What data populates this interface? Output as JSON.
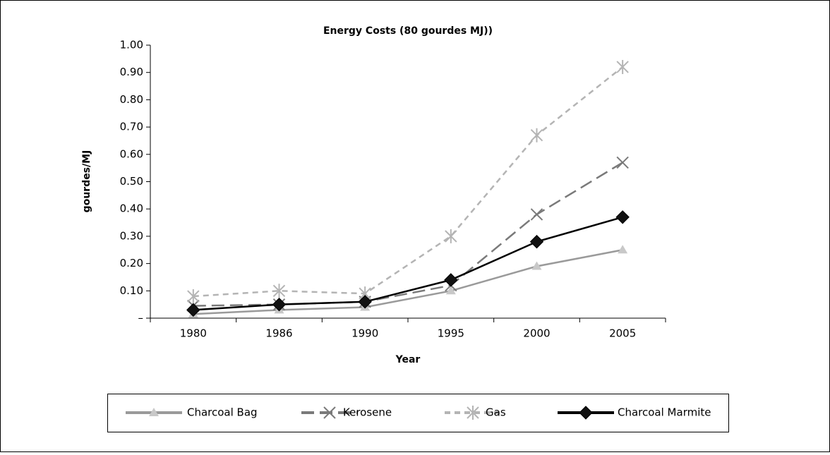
{
  "chart_data": {
    "type": "line",
    "title": "Energy Costs (80 gourdes MJ))",
    "x_label": "Year",
    "y_label": "gourdes/MJ",
    "categories": [
      "1980",
      "1986",
      "1990",
      "1995",
      "2000",
      "2005"
    ],
    "ylim": [
      0,
      1
    ],
    "yticks": [
      {
        "value": 0,
        "label": "–"
      },
      {
        "value": 0.1,
        "label": "0.10"
      },
      {
        "value": 0.2,
        "label": "0.20"
      },
      {
        "value": 0.3,
        "label": "0.30"
      },
      {
        "value": 0.4,
        "label": "0.40"
      },
      {
        "value": 0.5,
        "label": "0.50"
      },
      {
        "value": 0.6,
        "label": "0.60"
      },
      {
        "value": 0.7,
        "label": "0.70"
      },
      {
        "value": 0.8,
        "label": "0.80"
      },
      {
        "value": 0.9,
        "label": "0.90"
      },
      {
        "value": 1,
        "label": "1.00"
      }
    ],
    "legend": "bottom",
    "series": [
      {
        "name": "Charcoal Bag",
        "color": "#9a9a9a",
        "dash": "solid",
        "marker": "triangle",
        "values": [
          0.015,
          0.03,
          0.04,
          0.1,
          0.19,
          0.25
        ]
      },
      {
        "name": "Kerosene",
        "color": "#7a7a7a",
        "dash": "long",
        "marker": "x",
        "values": [
          0.045,
          0.05,
          0.06,
          0.12,
          0.38,
          0.57
        ]
      },
      {
        "name": "Gas",
        "color": "#b4b4b4",
        "dash": "short",
        "marker": "asterisk",
        "values": [
          0.08,
          0.1,
          0.09,
          0.3,
          0.67,
          0.92
        ]
      },
      {
        "name": "Charcoal Marmite",
        "color": "#000000",
        "dash": "solid",
        "marker": "diamond",
        "values": [
          0.03,
          0.05,
          0.06,
          0.14,
          0.28,
          0.37
        ]
      }
    ]
  }
}
